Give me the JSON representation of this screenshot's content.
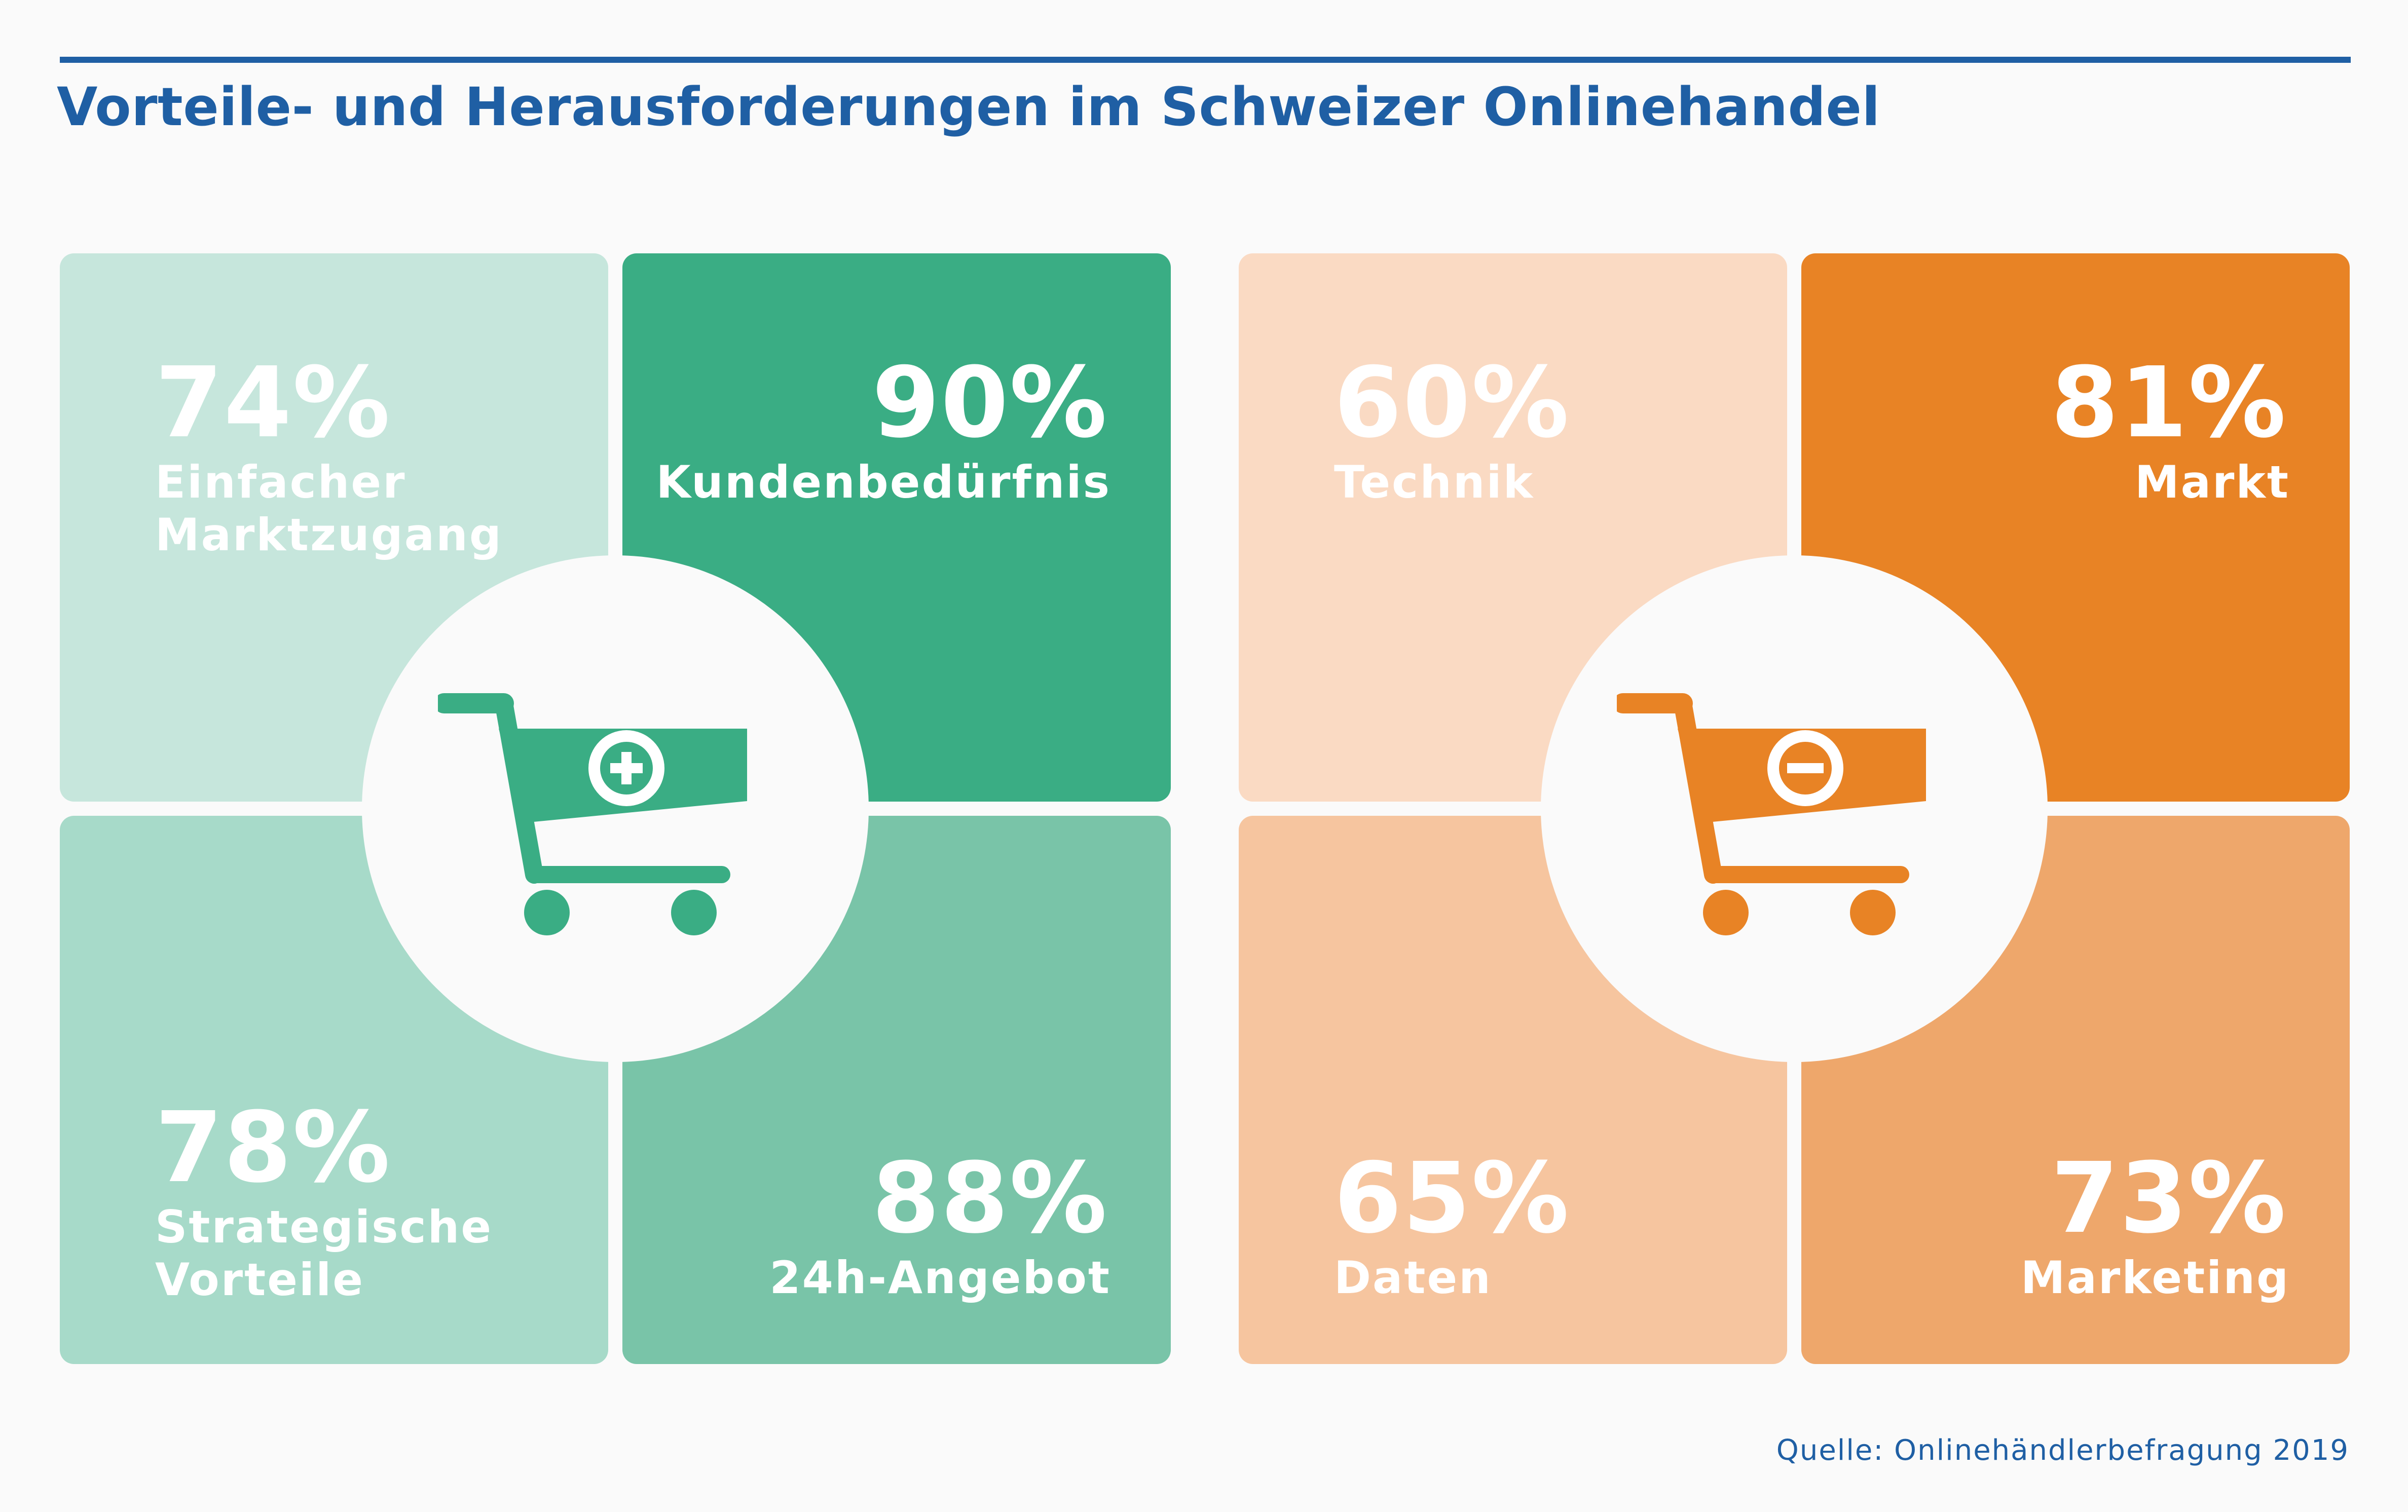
{
  "title": "Vorteile- und Herausforderungen im Schweizer Onlinehandel",
  "source": "Quelle: Onlinehändlerbefragung 2019",
  "colors": {
    "title": "#1f5fa4",
    "green_light": "#c6e6dc",
    "green_dark": "#3aad84",
    "green_mid_light": "#a7dac9",
    "green_mid": "#79c4a8",
    "orange_light": "#fadac3",
    "orange_dark": "#e88325",
    "orange_mid_light": "#f6c59f",
    "orange_mid": "#eea76b"
  },
  "chart_data": [
    {
      "type": "table",
      "group": "Vorteile",
      "icon": "cart-plus-icon",
      "tiles": [
        {
          "position": "top-left",
          "value": 74,
          "percent": "74%",
          "label": "Einfacher Marktzugang",
          "label_lines": [
            "Einfacher",
            "Marktzugang"
          ]
        },
        {
          "position": "top-right",
          "value": 90,
          "percent": "90%",
          "label": "Kundenbedürfnis",
          "label_lines": [
            "Kundenbedürfnis"
          ]
        },
        {
          "position": "bottom-left",
          "value": 78,
          "percent": "78%",
          "label": "Strategische Vorteile",
          "label_lines": [
            "Strategische",
            "Vorteile"
          ]
        },
        {
          "position": "bottom-right",
          "value": 88,
          "percent": "88%",
          "label": "24h-Angebot",
          "label_lines": [
            "24h-Angebot"
          ]
        }
      ]
    },
    {
      "type": "table",
      "group": "Herausforderungen",
      "icon": "cart-minus-icon",
      "tiles": [
        {
          "position": "top-left",
          "value": 60,
          "percent": "60%",
          "label": "Technik",
          "label_lines": [
            "Technik"
          ]
        },
        {
          "position": "top-right",
          "value": 81,
          "percent": "81%",
          "label": "Markt",
          "label_lines": [
            "Markt"
          ]
        },
        {
          "position": "bottom-left",
          "value": 65,
          "percent": "65%",
          "label": "Daten",
          "label_lines": [
            "Daten"
          ]
        },
        {
          "position": "bottom-right",
          "value": 73,
          "percent": "73%",
          "label": "Marketing",
          "label_lines": [
            "Marketing"
          ]
        }
      ]
    }
  ]
}
